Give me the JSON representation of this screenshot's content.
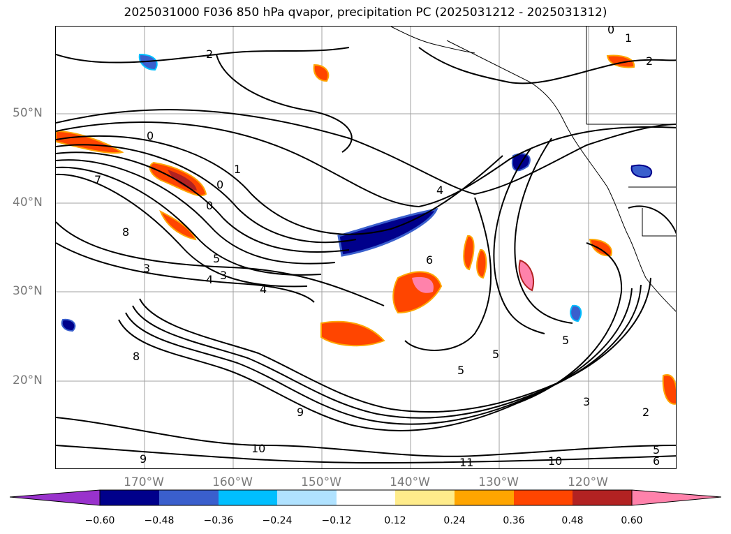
{
  "title": "2025031000 F036 850 hPa qvapor, precipitation PC (2025031212 - 2025031312)",
  "lat_labels": [
    "50°N",
    "40°N",
    "30°N",
    "20°N"
  ],
  "lon_labels": [
    "170°W",
    "160°W",
    "150°W",
    "140°W",
    "130°W",
    "120°W"
  ],
  "colorbar": {
    "ticks": [
      "−0.60",
      "−0.48",
      "−0.36",
      "−0.24",
      "−0.12",
      "0.12",
      "0.24",
      "0.36",
      "0.48",
      "0.60"
    ],
    "colors": [
      "#9932cc",
      "#00008b",
      "#3a5fcd",
      "#00bfff",
      "#b0e2ff",
      "#ffffff",
      "#ffec8b",
      "#ffa500",
      "#ff4500",
      "#b22222",
      "#ff82ab"
    ]
  },
  "contour_labels": [
    "0",
    "1",
    "2",
    "3",
    "4",
    "5",
    "6",
    "7",
    "8",
    "9",
    "10",
    "11"
  ],
  "colors": {
    "land_line": "#000000",
    "grid": "#a0a0a0",
    "label_gray": "#7a7a7a"
  }
}
